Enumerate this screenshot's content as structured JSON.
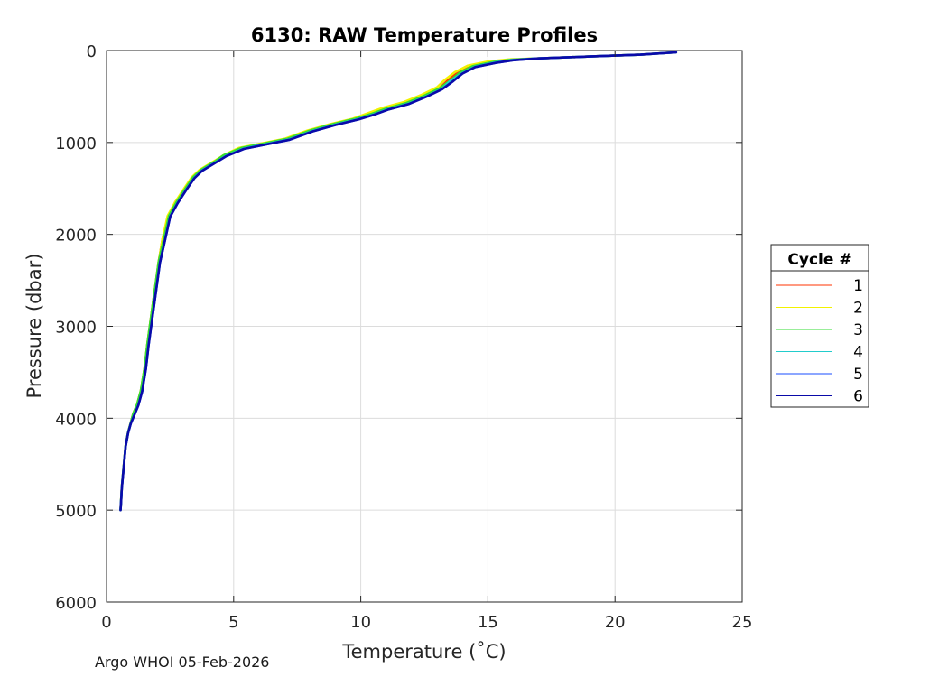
{
  "chart_data": {
    "type": "line",
    "title": "6130: RAW Temperature Profiles",
    "xlabel": "Temperature (˚C)",
    "ylabel": "Pressure (dbar)",
    "xlim": [
      0,
      25
    ],
    "ylim": [
      0,
      6000
    ],
    "y_reversed": true,
    "x_ticks": [
      0,
      5,
      10,
      15,
      20,
      25
    ],
    "y_ticks": [
      0,
      1000,
      2000,
      3000,
      4000,
      5000,
      6000
    ],
    "x_tick_labels": [
      "0",
      "5",
      "10",
      "15",
      "20",
      "25"
    ],
    "y_tick_labels": [
      "0",
      "1000",
      "2000",
      "3000",
      "4000",
      "5000",
      "6000"
    ],
    "grid": true,
    "legend": {
      "title": "Cycle #",
      "placement": "outside-right"
    },
    "series": [
      {
        "name": "1",
        "color": "#ff3300",
        "x": [
          22.4,
          21,
          19,
          17,
          15.8,
          15.2,
          14.3,
          13.8,
          13.4,
          13.1,
          12.5,
          11.8,
          11.0,
          10.4,
          9.8,
          8.9,
          8.0,
          7.1,
          6.2,
          5.3,
          4.6,
          4.3,
          4.0,
          3.7,
          3.4,
          3.1,
          2.7,
          2.45,
          2.2,
          2.05,
          1.9,
          1.75,
          1.6,
          1.5,
          1.35,
          1.2,
          1.05,
          0.95,
          0.85,
          0.75,
          0.7,
          0.65,
          0.6,
          0.57,
          0.55
        ],
        "y": [
          20,
          45,
          65,
          85,
          100,
          125,
          170,
          240,
          330,
          410,
          490,
          570,
          630,
          690,
          740,
          800,
          870,
          960,
          1010,
          1060,
          1140,
          1200,
          1250,
          1300,
          1380,
          1500,
          1650,
          1800,
          2050,
          2300,
          2600,
          2900,
          3200,
          3450,
          3700,
          3850,
          3950,
          4050,
          4150,
          4300,
          4450,
          4600,
          4750,
          4900,
          5000
        ]
      },
      {
        "name": "2",
        "color": "#f2f200",
        "x": [
          22.3,
          21,
          19,
          17,
          15.9,
          15.0,
          14.2,
          13.7,
          13.3,
          13.0,
          12.4,
          11.7,
          10.9,
          10.3,
          9.7,
          8.8,
          7.9,
          7.0,
          6.1,
          5.2,
          4.6,
          4.25,
          3.95,
          3.65,
          3.35,
          3.05,
          2.7,
          2.4,
          2.2,
          2.05,
          1.9,
          1.75,
          1.6,
          1.5,
          1.35,
          1.2,
          1.05,
          0.95,
          0.85,
          0.75,
          0.7,
          0.65,
          0.6,
          0.57,
          0.55
        ],
        "y": [
          20,
          45,
          65,
          85,
          95,
          120,
          165,
          235,
          320,
          400,
          480,
          560,
          620,
          680,
          740,
          800,
          870,
          960,
          1010,
          1060,
          1140,
          1200,
          1250,
          1300,
          1380,
          1500,
          1650,
          1800,
          2050,
          2300,
          2600,
          2900,
          3200,
          3450,
          3700,
          3850,
          3950,
          4050,
          4150,
          4300,
          4450,
          4600,
          4750,
          4900,
          5000
        ]
      },
      {
        "name": "3",
        "color": "#33dd33",
        "x": [
          22.4,
          21,
          19,
          17,
          15.9,
          15.2,
          14.4,
          13.9,
          13.5,
          13.1,
          12.5,
          11.8,
          11.0,
          10.4,
          9.8,
          8.9,
          8.0,
          7.1,
          6.2,
          5.3,
          4.6,
          4.3,
          4.0,
          3.7,
          3.4,
          3.1,
          2.75,
          2.45,
          2.25,
          2.05,
          1.9,
          1.75,
          1.6,
          1.5,
          1.35,
          1.2,
          1.05,
          0.95,
          0.85,
          0.75,
          0.7,
          0.65,
          0.6,
          0.57,
          0.55
        ],
        "y": [
          20,
          45,
          65,
          85,
          100,
          125,
          170,
          240,
          330,
          410,
          490,
          570,
          630,
          690,
          740,
          800,
          870,
          960,
          1010,
          1060,
          1140,
          1200,
          1250,
          1300,
          1380,
          1500,
          1650,
          1800,
          2050,
          2300,
          2600,
          2900,
          3200,
          3450,
          3700,
          3850,
          3950,
          4050,
          4150,
          4300,
          4450,
          4600,
          4750,
          4900,
          5000
        ]
      },
      {
        "name": "4",
        "color": "#22cccc",
        "x": [
          22.4,
          21,
          19,
          17,
          16.0,
          15.3,
          14.5,
          14.0,
          13.5,
          13.2,
          12.6,
          11.9,
          11.1,
          10.5,
          9.9,
          9.0,
          8.1,
          7.2,
          6.3,
          5.4,
          4.7,
          4.35,
          4.05,
          3.75,
          3.45,
          3.15,
          2.8,
          2.5,
          2.3,
          2.1,
          1.95,
          1.8,
          1.65,
          1.55,
          1.4,
          1.25,
          1.1,
          0.95,
          0.85,
          0.75,
          0.7,
          0.65,
          0.6,
          0.57,
          0.55
        ],
        "y": [
          20,
          45,
          65,
          85,
          100,
          130,
          175,
          245,
          335,
          415,
          495,
          575,
          635,
          695,
          745,
          805,
          875,
          965,
          1015,
          1065,
          1145,
          1205,
          1255,
          1305,
          1385,
          1505,
          1655,
          1805,
          2055,
          2305,
          2605,
          2905,
          3205,
          3455,
          3705,
          3855,
          3955,
          4055,
          4155,
          4305,
          4455,
          4605,
          4755,
          4905,
          5000
        ]
      },
      {
        "name": "5",
        "color": "#1a4cff",
        "x": [
          22.4,
          21,
          19,
          17,
          16.0,
          15.3,
          14.5,
          14.0,
          13.6,
          13.2,
          12.6,
          11.9,
          11.1,
          10.5,
          9.9,
          9.0,
          8.1,
          7.2,
          6.3,
          5.4,
          4.7,
          4.35,
          4.05,
          3.75,
          3.45,
          3.15,
          2.8,
          2.5,
          2.3,
          2.1,
          1.95,
          1.8,
          1.65,
          1.55,
          1.4,
          1.25,
          1.1,
          0.95,
          0.85,
          0.75,
          0.7,
          0.65,
          0.6,
          0.57,
          0.55
        ],
        "y": [
          20,
          45,
          65,
          85,
          105,
          135,
          180,
          250,
          340,
          420,
          500,
          580,
          640,
          700,
          750,
          810,
          880,
          970,
          1020,
          1070,
          1150,
          1210,
          1260,
          1310,
          1390,
          1510,
          1660,
          1810,
          2060,
          2310,
          2610,
          2910,
          3210,
          3460,
          3710,
          3860,
          3960,
          4060,
          4160,
          4310,
          4460,
          4610,
          4760,
          4910,
          5000
        ]
      },
      {
        "name": "6",
        "color": "#0a0aa8",
        "x": [
          22.4,
          21,
          19,
          17,
          16.0,
          15.3,
          14.5,
          14.0,
          13.6,
          13.2,
          12.6,
          11.9,
          11.1,
          10.5,
          9.9,
          9.0,
          8.1,
          7.2,
          6.3,
          5.4,
          4.7,
          4.35,
          4.05,
          3.75,
          3.45,
          3.15,
          2.8,
          2.5,
          2.3,
          2.1,
          1.95,
          1.8,
          1.65,
          1.55,
          1.4,
          1.25,
          1.1,
          0.95,
          0.85,
          0.75,
          0.7,
          0.65,
          0.6,
          0.57,
          0.55
        ],
        "y": [
          20,
          45,
          65,
          85,
          105,
          135,
          180,
          250,
          340,
          420,
          500,
          580,
          640,
          700,
          750,
          810,
          880,
          970,
          1020,
          1070,
          1150,
          1210,
          1260,
          1310,
          1390,
          1510,
          1660,
          1810,
          2060,
          2310,
          2610,
          2910,
          3210,
          3460,
          3710,
          3860,
          3960,
          4060,
          4160,
          4310,
          4460,
          4610,
          4760,
          4910,
          5000
        ]
      }
    ]
  },
  "footer": {
    "credit": "Argo WHOI 05-Feb-2026"
  }
}
